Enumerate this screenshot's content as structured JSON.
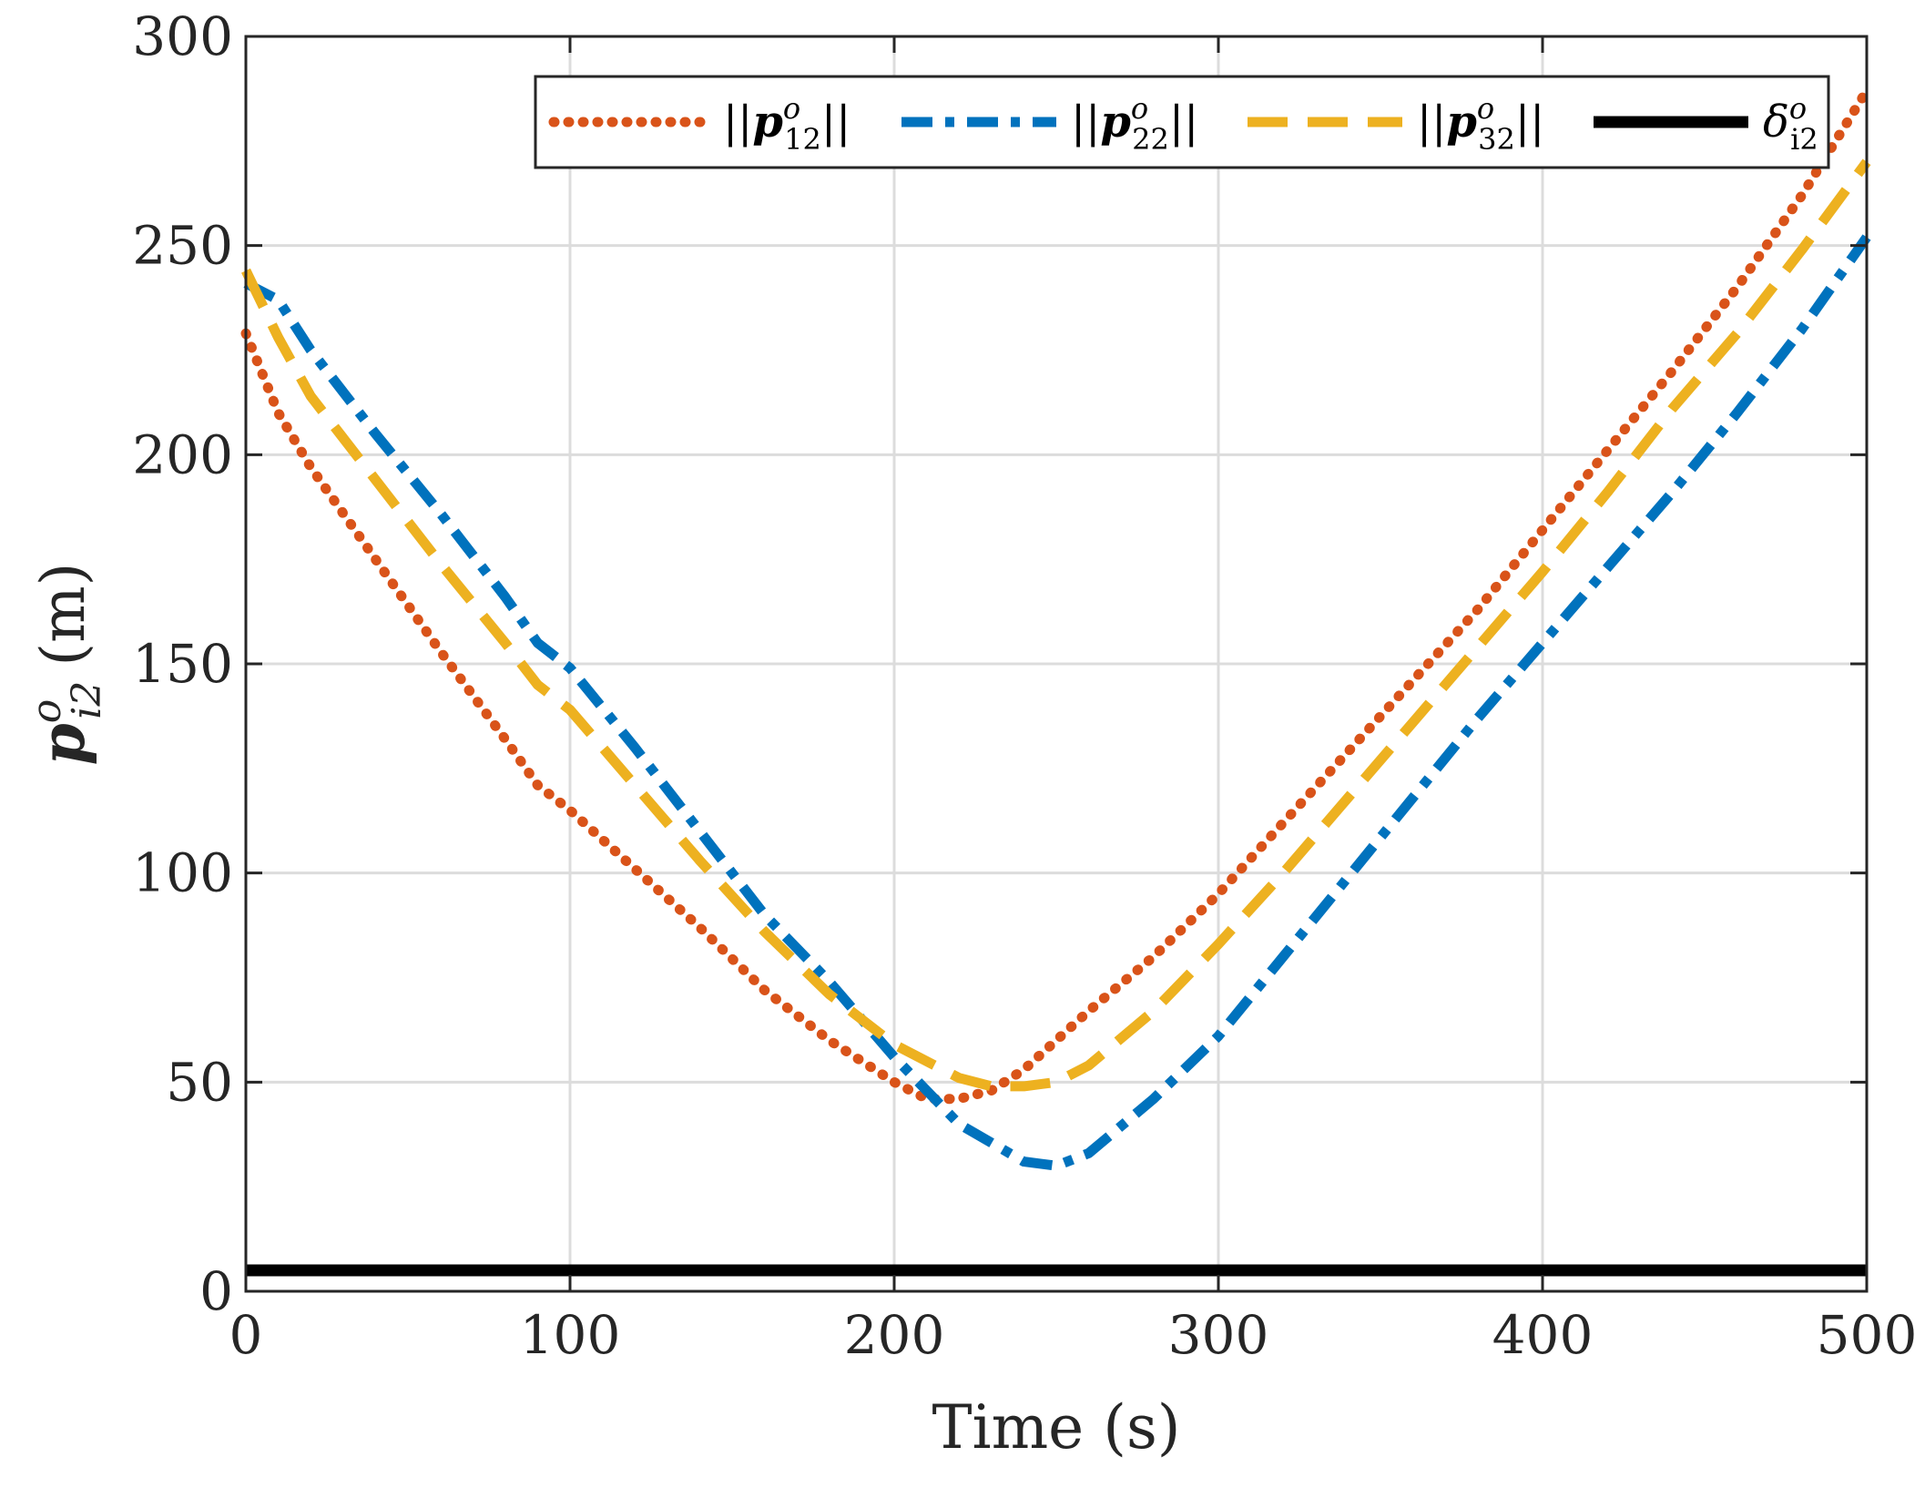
{
  "chart_data": {
    "type": "line",
    "title": "",
    "xlabel": "Time (s)",
    "ylabel": "p_i2^o (m)",
    "ylabel_parts": {
      "base": "p",
      "sup": "o",
      "sub": "i2",
      "unit": "(m)"
    },
    "xlim": [
      0,
      500
    ],
    "ylim": [
      0,
      300
    ],
    "xticks": [
      0,
      100,
      200,
      300,
      400,
      500
    ],
    "yticks": [
      0,
      50,
      100,
      150,
      200,
      250,
      300
    ],
    "grid": true,
    "legend_position": "top",
    "series": [
      {
        "name": "||p_12^o||",
        "legend": {
          "pre": "||",
          "base": "p",
          "sup": "o",
          "sub": "12",
          "post": "||"
        },
        "color": "#D95319",
        "style": "dotted",
        "x": [
          0,
          10,
          20,
          40,
          60,
          80,
          90,
          100,
          120,
          140,
          160,
          180,
          200,
          210,
          220,
          230,
          240,
          260,
          280,
          300,
          320,
          340,
          360,
          380,
          400,
          420,
          440,
          460,
          480,
          500
        ],
        "y": [
          229,
          210,
          197,
          175,
          153,
          132,
          121,
          115,
          101,
          87,
          72,
          60,
          50,
          46,
          46,
          48,
          53,
          67,
          80,
          95,
          112,
          129,
          146,
          163,
          182,
          201,
          220,
          240,
          262,
          287
        ]
      },
      {
        "name": "||p_22^o||",
        "legend": {
          "pre": "||",
          "base": "p",
          "sup": "o",
          "sub": "22",
          "post": "||"
        },
        "color": "#0072BD",
        "style": "dashdot",
        "x": [
          0,
          10,
          20,
          40,
          60,
          80,
          90,
          100,
          120,
          140,
          160,
          180,
          200,
          220,
          240,
          250,
          260,
          280,
          300,
          320,
          340,
          360,
          380,
          400,
          420,
          440,
          460,
          480,
          500
        ],
        "y": [
          241,
          237,
          225,
          205,
          186,
          166,
          155,
          149,
          130,
          110,
          90,
          74,
          56,
          40,
          31,
          30,
          33,
          46,
          61,
          80,
          99,
          118,
          137,
          155,
          173,
          191,
          210,
          230,
          252
        ]
      },
      {
        "name": "||p_32^o||",
        "legend": {
          "pre": "||",
          "base": "p",
          "sup": "o",
          "sub": "32",
          "post": "||"
        },
        "color": "#EDB120",
        "style": "dashed",
        "x": [
          0,
          5,
          10,
          20,
          40,
          60,
          80,
          90,
          100,
          120,
          140,
          160,
          180,
          200,
          220,
          230,
          240,
          250,
          260,
          280,
          300,
          320,
          340,
          360,
          380,
          400,
          420,
          440,
          460,
          480,
          500
        ],
        "y": [
          244,
          236,
          228,
          214,
          194,
          174,
          155,
          145,
          139,
          121,
          103,
          86,
          71,
          59,
          51,
          49,
          49,
          50,
          54,
          67,
          83,
          100,
          118,
          136,
          154,
          172,
          191,
          211,
          229,
          249,
          270
        ]
      },
      {
        "name": "δ_i2^o",
        "legend": {
          "pre": "",
          "base": "δ",
          "sup": "o",
          "sub": "i2",
          "post": ""
        },
        "color": "#000000",
        "style": "solid",
        "x": [
          0,
          500
        ],
        "y": [
          5,
          5
        ]
      }
    ]
  }
}
